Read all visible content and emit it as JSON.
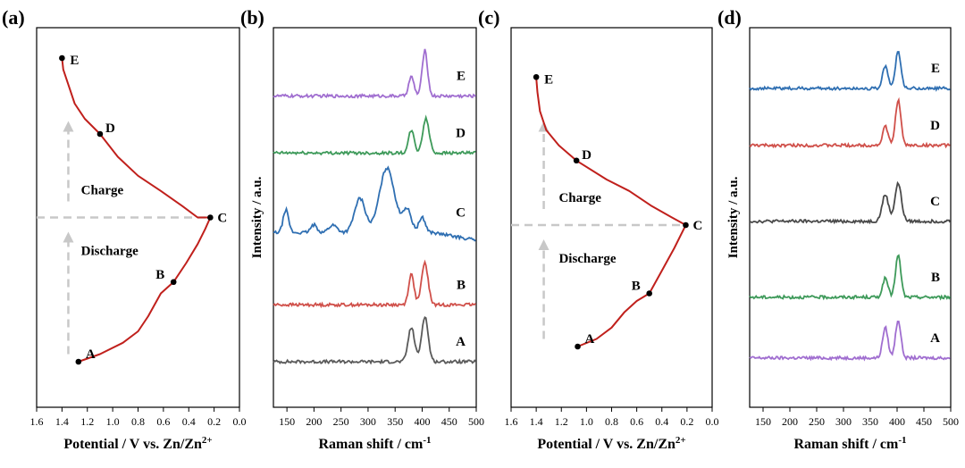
{
  "figure": {
    "panels": [
      "(a)",
      "(b)",
      "(c)",
      "(d)"
    ]
  },
  "colors": {
    "charge_curve": "#c0201c",
    "A": "#5a5a5a",
    "B": "#d0504a",
    "C": "#2f6fb2",
    "D": "#3e9a5a",
    "E": "#a06ed0",
    "d_A": "#a06ed0",
    "d_B": "#3e9a5a",
    "d_C": "#4a4a4a",
    "d_D": "#d0504a",
    "d_E": "#2f6fb2",
    "guide": "#c8c8c8"
  },
  "chart_data": [
    {
      "panel": "(a)",
      "type": "line",
      "xlabel": "Potential / V vs. Zn/Zn",
      "xlabel_sup": "2+",
      "xlim": [
        1.6,
        0.0
      ],
      "xticks": [
        "1.6",
        "1.4",
        "1.2",
        "1.0",
        "0.8",
        "0.6",
        "0.4",
        "0.2",
        "0.0"
      ],
      "ylabel": "",
      "annotations": [
        "Charge",
        "Discharge"
      ],
      "points": [
        {
          "label": "A",
          "x": 1.27,
          "t": 0.88
        },
        {
          "label": "B",
          "x": 0.52,
          "t": 0.67
        },
        {
          "label": "C",
          "x": 0.23,
          "t": 0.5
        },
        {
          "label": "D",
          "x": 1.1,
          "t": 0.28
        },
        {
          "label": "E",
          "x": 1.4,
          "t": 0.08
        }
      ],
      "curve": [
        [
          1.27,
          0.88
        ],
        [
          1.1,
          0.86
        ],
        [
          0.92,
          0.83
        ],
        [
          0.8,
          0.8
        ],
        [
          0.72,
          0.76
        ],
        [
          0.62,
          0.7
        ],
        [
          0.52,
          0.67
        ],
        [
          0.42,
          0.62
        ],
        [
          0.33,
          0.57
        ],
        [
          0.27,
          0.53
        ],
        [
          0.23,
          0.5
        ],
        [
          0.33,
          0.5
        ],
        [
          0.45,
          0.47
        ],
        [
          0.62,
          0.43
        ],
        [
          0.8,
          0.39
        ],
        [
          0.96,
          0.34
        ],
        [
          1.1,
          0.28
        ],
        [
          1.22,
          0.24
        ],
        [
          1.3,
          0.2
        ],
        [
          1.35,
          0.15
        ],
        [
          1.39,
          0.11
        ],
        [
          1.4,
          0.08
        ]
      ]
    },
    {
      "panel": "(b)",
      "type": "line",
      "xlabel": "Raman shift / cm",
      "xlabel_sup": "-1",
      "ylabel": "Intensity / a.u.",
      "xlim": [
        125,
        500
      ],
      "xticks": [
        "150",
        "200",
        "250",
        "300",
        "350",
        "400",
        "450",
        "500"
      ],
      "series": [
        {
          "name": "A",
          "offset": 0.12,
          "peaks": [
            [
              380,
              0.09,
              6
            ],
            [
              405,
              0.12,
              6
            ]
          ]
        },
        {
          "name": "B",
          "offset": 0.27,
          "peaks": [
            [
              380,
              0.08,
              5
            ],
            [
              405,
              0.11,
              6
            ]
          ]
        },
        {
          "name": "C",
          "offset": 0.46,
          "peaks": [
            [
              148,
              0.06,
              5
            ],
            [
              200,
              0.02,
              6
            ],
            [
              235,
              0.02,
              8
            ],
            [
              285,
              0.09,
              10
            ],
            [
              335,
              0.17,
              14
            ],
            [
              372,
              0.06,
              8
            ],
            [
              400,
              0.04,
              6
            ]
          ]
        },
        {
          "name": "D",
          "offset": 0.67,
          "peaks": [
            [
              380,
              0.06,
              5
            ],
            [
              407,
              0.09,
              6
            ]
          ]
        },
        {
          "name": "E",
          "offset": 0.82,
          "peaks": [
            [
              380,
              0.05,
              5
            ],
            [
              405,
              0.12,
              5
            ]
          ]
        }
      ]
    },
    {
      "panel": "(c)",
      "type": "line",
      "xlabel": "Potential / V vs. Zn/Zn",
      "xlabel_sup": "2+",
      "xlim": [
        1.6,
        0.0
      ],
      "xticks": [
        "1.6",
        "1.4",
        "1.2",
        "1.0",
        "0.8",
        "0.6",
        "0.4",
        "0.2",
        "0.0"
      ],
      "annotations": [
        "Charge",
        "Discharge"
      ],
      "points": [
        {
          "label": "A",
          "x": 1.07,
          "t": 0.84
        },
        {
          "label": "B",
          "x": 0.5,
          "t": 0.7
        },
        {
          "label": "C",
          "x": 0.21,
          "t": 0.52
        },
        {
          "label": "D",
          "x": 1.08,
          "t": 0.35
        },
        {
          "label": "E",
          "x": 1.4,
          "t": 0.13
        }
      ],
      "curve": [
        [
          1.07,
          0.84
        ],
        [
          0.92,
          0.82
        ],
        [
          0.8,
          0.79
        ],
        [
          0.7,
          0.75
        ],
        [
          0.6,
          0.72
        ],
        [
          0.5,
          0.7
        ],
        [
          0.4,
          0.64
        ],
        [
          0.3,
          0.58
        ],
        [
          0.21,
          0.52
        ],
        [
          0.32,
          0.5
        ],
        [
          0.48,
          0.47
        ],
        [
          0.66,
          0.43
        ],
        [
          0.84,
          0.4
        ],
        [
          1.08,
          0.35
        ],
        [
          1.22,
          0.31
        ],
        [
          1.32,
          0.27
        ],
        [
          1.37,
          0.22
        ],
        [
          1.39,
          0.17
        ],
        [
          1.4,
          0.13
        ]
      ]
    },
    {
      "panel": "(d)",
      "type": "line",
      "xlabel": "Raman shift / cm",
      "xlabel_sup": "-1",
      "ylabel": "Intensity / a.u.",
      "xlim": [
        125,
        500
      ],
      "xticks": [
        "150",
        "200",
        "250",
        "300",
        "350",
        "400",
        "450",
        "500"
      ],
      "series": [
        {
          "name": "A",
          "offset": 0.13,
          "peaks": [
            [
              378,
              0.08,
              5
            ],
            [
              402,
              0.1,
              5
            ]
          ]
        },
        {
          "name": "B",
          "offset": 0.29,
          "peaks": [
            [
              378,
              0.05,
              5
            ],
            [
              402,
              0.11,
              5
            ]
          ]
        },
        {
          "name": "C",
          "offset": 0.49,
          "peaks": [
            [
              378,
              0.07,
              6
            ],
            [
              402,
              0.1,
              6
            ]
          ]
        },
        {
          "name": "D",
          "offset": 0.69,
          "peaks": [
            [
              378,
              0.05,
              5
            ],
            [
              402,
              0.12,
              5
            ]
          ]
        },
        {
          "name": "E",
          "offset": 0.84,
          "peaks": [
            [
              378,
              0.06,
              5
            ],
            [
              402,
              0.1,
              5
            ]
          ]
        }
      ]
    }
  ]
}
